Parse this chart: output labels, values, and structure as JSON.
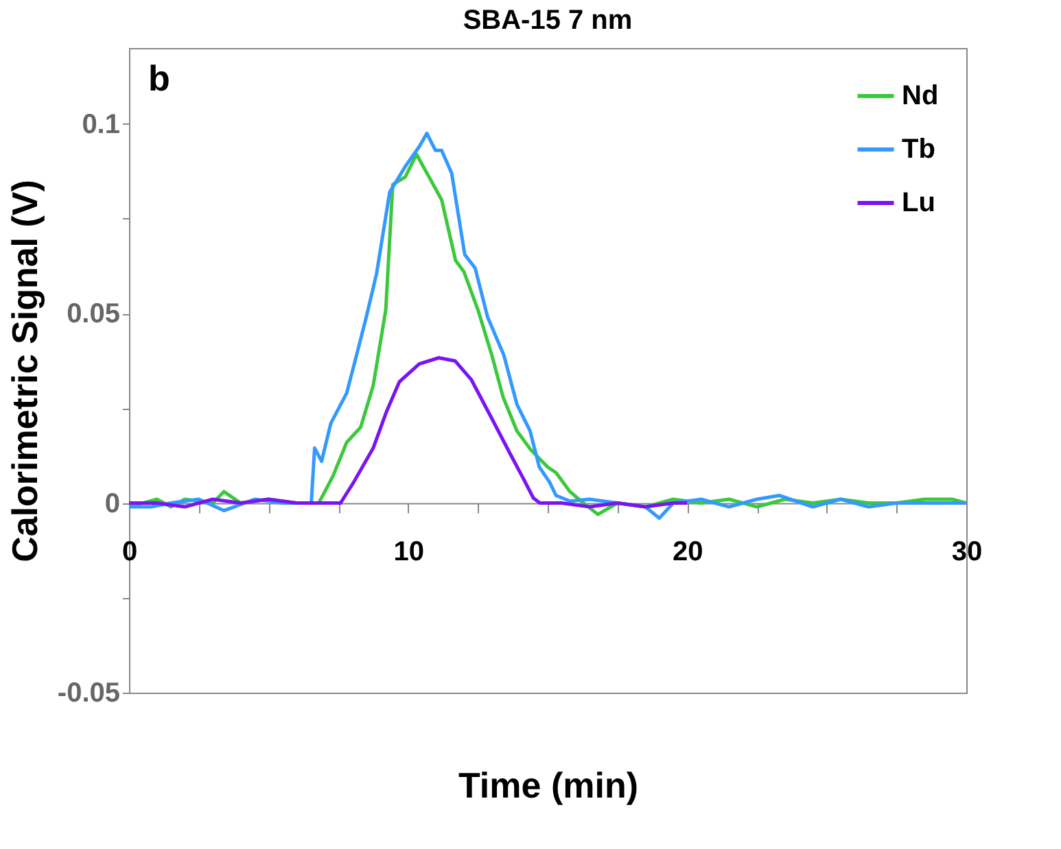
{
  "chart_data": {
    "type": "line",
    "title": "SBA-15 7 nm",
    "xlabel": "Time (min)",
    "ylabel": "Calorimetric Signal (V)",
    "annotations": [
      "b"
    ],
    "xlim": [
      0,
      30
    ],
    "ylim": [
      -0.05,
      0.12
    ],
    "xticks": [
      0,
      {
        "value": 2.5,
        "label": null
      },
      {
        "value": 5,
        "label": null
      },
      {
        "value": 7.5,
        "label": null
      },
      10,
      {
        "value": 12.5,
        "label": null
      },
      {
        "value": 15,
        "label": null
      },
      {
        "value": 17.5,
        "label": null
      },
      20,
      {
        "value": 22.5,
        "label": null
      },
      {
        "value": 25,
        "label": null
      },
      {
        "value": 27.5,
        "label": null
      },
      30
    ],
    "yticks": [
      -0.05,
      {
        "value": -0.025,
        "label": null
      },
      0,
      {
        "value": 0.025,
        "label": null
      },
      0.05,
      {
        "value": 0.075,
        "label": null
      },
      0.1
    ],
    "grid": false,
    "legend": "top right",
    "marker": "none",
    "line_style": "solid",
    "series": [
      {
        "name": "Nd",
        "color": "#3cc83c",
        "x": [
          0,
          1,
          1.5,
          2,
          3,
          3.4,
          4,
          5,
          6,
          6.8,
          7.3,
          7.8,
          8.3,
          8.75,
          9.2,
          9.45,
          9.9,
          10.3,
          10.6,
          11.2,
          11.7,
          12.0,
          12.5,
          13.0,
          13.4,
          13.9,
          14.4,
          15.0,
          15.3,
          15.8,
          16.2,
          16.8,
          17.5,
          18.5,
          19.5,
          20.5,
          21.5,
          22.5,
          23.5,
          24.5,
          25.5,
          26.5,
          27.5,
          28.5,
          29.5,
          30
        ],
        "values": [
          -0.001,
          0.001,
          -0.001,
          0.001,
          0.0,
          0.003,
          0.0,
          0.001,
          0.0,
          0.0,
          0.007,
          0.016,
          0.02,
          0.031,
          0.051,
          0.084,
          0.086,
          0.092,
          0.088,
          0.08,
          0.064,
          0.061,
          0.051,
          0.039,
          0.028,
          0.019,
          0.014,
          0.0095,
          0.008,
          0.003,
          0.0005,
          -0.003,
          0.0,
          -0.001,
          0.001,
          0.0,
          0.001,
          -0.001,
          0.001,
          0.0,
          0.001,
          0.0,
          0.0,
          0.001,
          0.001,
          0.0
        ]
      },
      {
        "name": "Tb",
        "color": "#3399ff",
        "x": [
          0,
          0.8,
          1.5,
          2.5,
          3.4,
          4.5,
          5.5,
          6.53,
          6.65,
          6.9,
          7.23,
          7.8,
          8.1,
          8.5,
          8.87,
          9.34,
          9.92,
          10.4,
          10.67,
          10.98,
          11.2,
          11.56,
          12.03,
          12.4,
          12.85,
          13.43,
          13.9,
          14.37,
          14.7,
          15.07,
          15.3,
          15.8,
          16.5,
          17.5,
          18.5,
          19.0,
          19.5,
          20.5,
          21.5,
          22.5,
          23.3,
          24.5,
          25.5,
          26.5,
          27.5,
          28.5,
          29.5,
          30
        ],
        "values": [
          -0.001,
          -0.001,
          0.0,
          0.001,
          -0.002,
          0.001,
          0.0,
          0.0,
          0.0145,
          0.011,
          0.021,
          0.029,
          0.0375,
          0.049,
          0.0605,
          0.082,
          0.089,
          0.094,
          0.0975,
          0.093,
          0.093,
          0.087,
          0.0655,
          0.062,
          0.049,
          0.039,
          0.026,
          0.019,
          0.0095,
          0.0055,
          0.002,
          0.0005,
          0.001,
          0.0,
          -0.001,
          -0.004,
          0.0,
          0.001,
          -0.001,
          0.001,
          0.002,
          -0.001,
          0.001,
          -0.001,
          0.0,
          0.0,
          0.0,
          0.0
        ]
      },
      {
        "name": "Lu",
        "color": "#7a14f0",
        "x": [
          0,
          1,
          2,
          3,
          4,
          5,
          6,
          7,
          7.58,
          8.05,
          8.75,
          9.22,
          9.69,
          10.4,
          11.1,
          11.68,
          12.26,
          12.97,
          13.67,
          14.14,
          14.49,
          14.72,
          15.5,
          16.5,
          17.5,
          18.5,
          19.5,
          20
        ],
        "values": [
          0.0,
          0.0,
          -0.001,
          0.001,
          0.0,
          0.001,
          0.0,
          0.0,
          0.0,
          0.0055,
          0.0145,
          0.024,
          0.032,
          0.0367,
          0.0383,
          0.0375,
          0.0326,
          0.0227,
          0.0128,
          0.0063,
          0.0013,
          0.0,
          0.0,
          -0.001,
          0.0,
          -0.001,
          0.0,
          0.0
        ]
      }
    ]
  }
}
